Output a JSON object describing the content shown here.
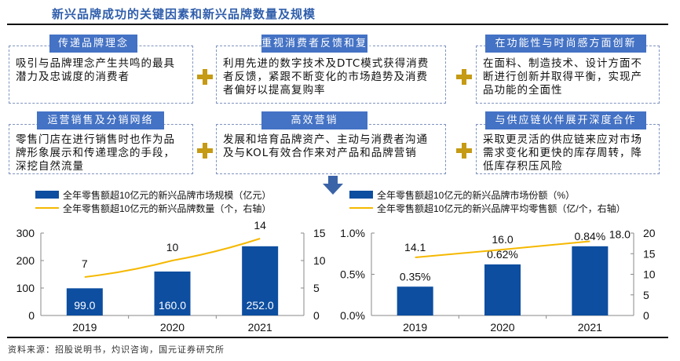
{
  "title": "新兴品牌成功的关键因素和新兴品牌数量及规模",
  "factors": [
    {
      "tag": "传递品牌理念",
      "text": "吸引与品牌理念产生共鸣的最具潜力及忠诚度的消费者"
    },
    {
      "tag": "重视消费者反馈和复购",
      "text": "利用先进的数字技术及DTC模式获得消费者反馈，紧跟不断变化的市场趋势及消费者偏好以提高复购率"
    },
    {
      "tag": "在功能性与时尚感方面创新",
      "text": "在面料、制造技术、设计方面不断进行创新并取得平衡，实现产品功能的全面性"
    },
    {
      "tag": "运营销售及分销网络",
      "text": "零售门店在进行销售时也作为品牌形象展示和传递理念的手段，深挖自然流量"
    },
    {
      "tag": "高效营销",
      "text": "发展和培育品牌资产、主动与消费者沟通及与KOL有效合作来对产品和品牌营销"
    },
    {
      "tag": "与供应链伙伴展开深度合作",
      "text": "采取更灵活的供应链来应对市场需求变化和更快的库存周转，降低库存积压风险"
    }
  ],
  "colors": {
    "bar": "#0d4ea0",
    "line": "#f5b800",
    "tag": "#4472c4",
    "plus": "#c59a14"
  },
  "source": "资料来源：招股说明书，灼识咨询，国元证券研究所",
  "chart_data": [
    {
      "type": "bar+line",
      "categories": [
        "2019",
        "2020",
        "2021"
      ],
      "series": [
        {
          "name": "全年零售额超10亿元的新兴品牌市场规模（亿元）",
          "type": "bar",
          "axis": "left",
          "values": [
            99.0,
            160.0,
            252.0
          ],
          "labels": [
            "99.0",
            "160.0",
            "252.0"
          ]
        },
        {
          "name": "全年零售额超10亿元的新兴品牌数量（个，右轴）",
          "type": "line",
          "axis": "right",
          "values": [
            7,
            10,
            14
          ],
          "labels": [
            "7",
            "10",
            "14"
          ]
        }
      ],
      "ylim_left": [
        0,
        300
      ],
      "yticks_left": [
        "0",
        "100",
        "200",
        "300"
      ],
      "ylim_right": [
        0,
        15
      ],
      "yticks_right": [
        "0",
        "5",
        "10",
        "15"
      ],
      "legend": "top"
    },
    {
      "type": "bar+line",
      "categories": [
        "2019",
        "2020",
        "2021"
      ],
      "series": [
        {
          "name": "全年零售额超10亿元的新兴品牌市场份额（%）",
          "type": "bar",
          "axis": "left",
          "values": [
            0.35,
            0.62,
            0.84
          ],
          "labels": [
            "0.35%",
            "0.62%",
            "0.84%"
          ]
        },
        {
          "name": "全年零售额超10亿元的新兴品牌平均零售额（亿/个，右轴）",
          "type": "line",
          "axis": "right",
          "values": [
            14.1,
            16.0,
            18.0
          ],
          "labels": [
            "14.1",
            "16.0",
            "18.0"
          ]
        }
      ],
      "ylim_left": [
        0,
        1.0
      ],
      "yticks_left": [
        "0.0%",
        "0.5%",
        "1.0%"
      ],
      "ylim_right": [
        0,
        20
      ],
      "yticks_right": [
        "0",
        "5",
        "10",
        "15",
        "20"
      ],
      "legend": "top"
    }
  ]
}
